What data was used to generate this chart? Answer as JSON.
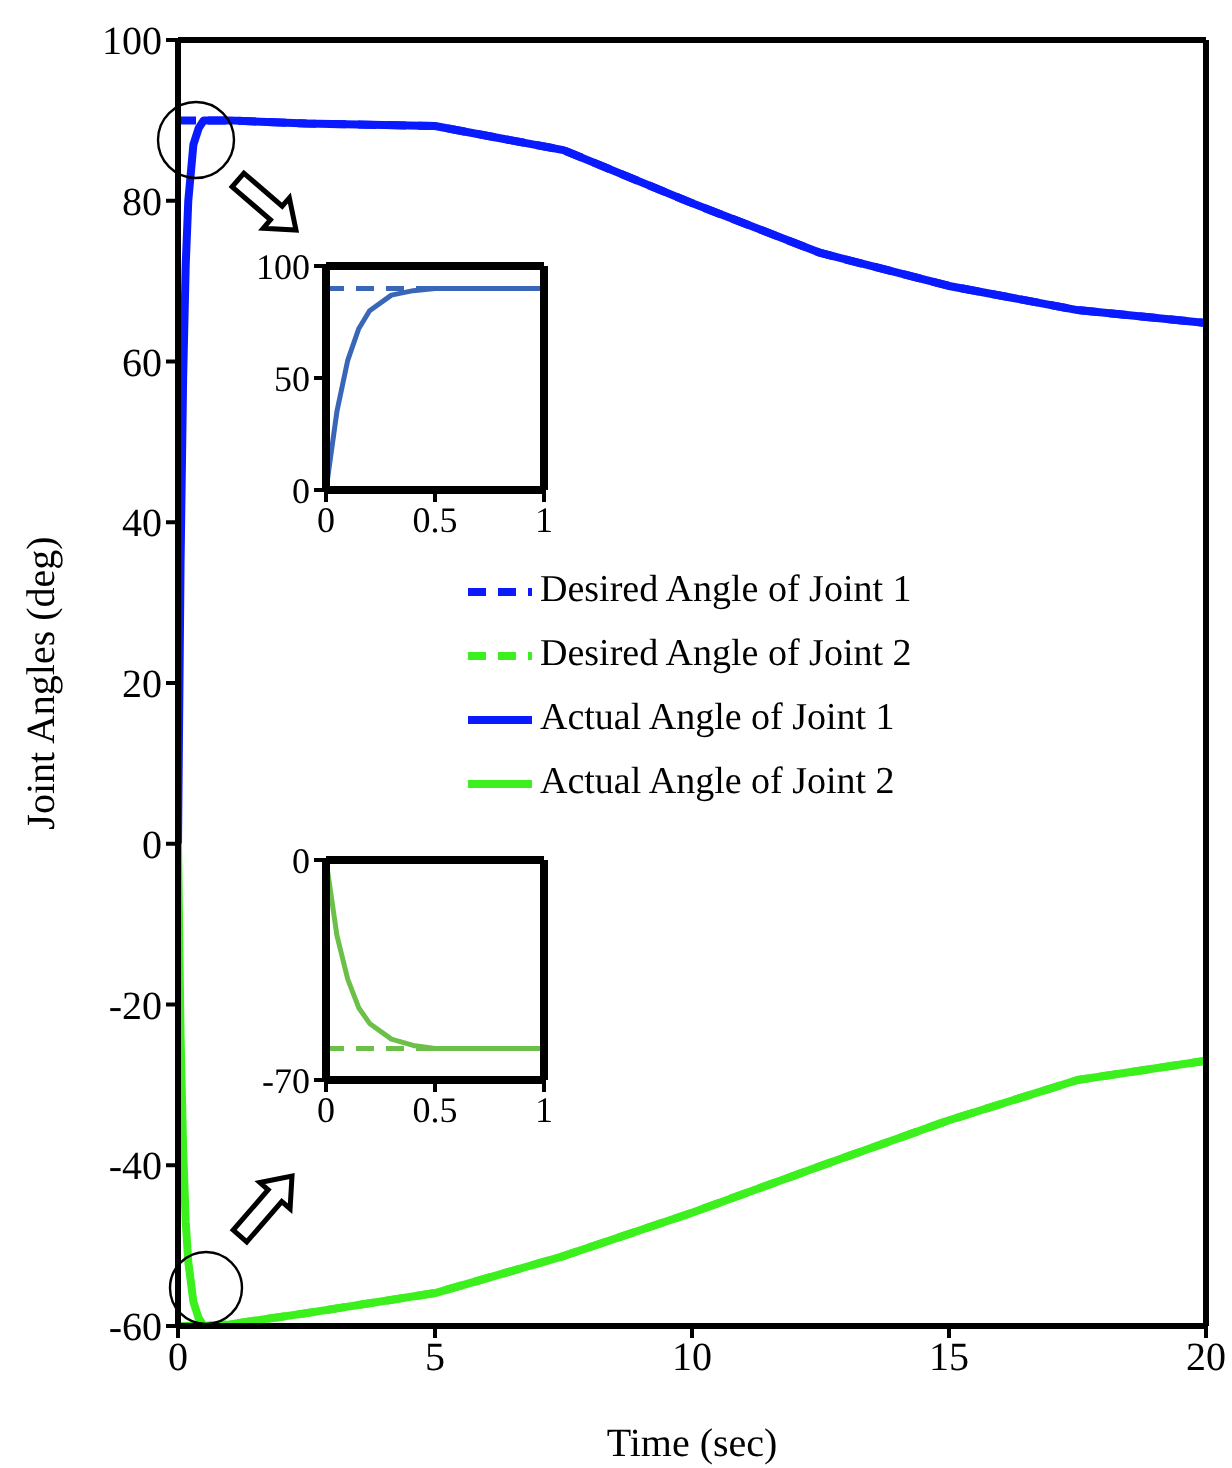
{
  "chart_data": [
    {
      "type": "line",
      "xlabel": "Time (sec)",
      "ylabel": "Joint Angles (deg)",
      "xlim": [
        0,
        20
      ],
      "xticks": [
        0,
        5,
        10,
        15,
        20
      ],
      "ylim": [
        -60,
        100
      ],
      "yticks": [
        -60,
        -40,
        -20,
        0,
        20,
        40,
        60,
        80,
        100
      ],
      "legend": "right",
      "grid": false,
      "series": [
        {
          "name": "Desired Angle of Joint 1",
          "color": "#0a1aff",
          "line_style": "dashed",
          "x": [
            0,
            0.5,
            1,
            2.5,
            5,
            7.5,
            10,
            12.5,
            15,
            17.5,
            20
          ],
          "values": [
            90,
            90,
            90,
            89.6,
            89.3,
            86.3,
            79.7,
            73.5,
            69.4,
            66.4,
            64.8
          ]
        },
        {
          "name": "Desired Angle of Joint 2",
          "color": "#3cf01e",
          "line_style": "dashed",
          "x": [
            0,
            0.5,
            1,
            2.5,
            5,
            7.5,
            10,
            12.5,
            15,
            17.5,
            20
          ],
          "values": [
            -60,
            -60,
            -59.8,
            -58.4,
            -55.9,
            -51.3,
            -45.9,
            -40.1,
            -34.4,
            -29.4,
            -27
          ]
        },
        {
          "name": "Actual Angle of Joint 1",
          "color": "#0a1aff",
          "line_style": "solid",
          "x": [
            0,
            0.05,
            0.1,
            0.15,
            0.2,
            0.3,
            0.4,
            0.5,
            1,
            2.5,
            5,
            7.5,
            10,
            12.5,
            15,
            17.5,
            20
          ],
          "values": [
            0,
            35,
            58,
            72,
            80,
            87,
            89,
            90,
            90,
            89.6,
            89.3,
            86.3,
            79.7,
            73.5,
            69.4,
            66.4,
            64.8
          ]
        },
        {
          "name": "Actual Angle of Joint 2",
          "color": "#3cf01e",
          "line_style": "solid",
          "x": [
            0,
            0.05,
            0.1,
            0.15,
            0.2,
            0.3,
            0.4,
            0.5,
            1,
            2.5,
            5,
            7.5,
            10,
            12.5,
            15,
            17.5,
            20
          ],
          "values": [
            0,
            -24,
            -38,
            -47,
            -52,
            -57,
            -59,
            -60,
            -59.8,
            -58.4,
            -55.9,
            -51.3,
            -45.9,
            -40.1,
            -34.4,
            -29.4,
            -27
          ]
        }
      ]
    },
    {
      "type": "line",
      "xlim": [
        0,
        1
      ],
      "xticks": [
        0,
        0.5,
        1
      ],
      "ylim": [
        0,
        100
      ],
      "yticks": [
        0,
        50,
        100
      ],
      "series": [
        {
          "color": "#3a66b8",
          "line_style": "dashed",
          "x": [
            0,
            1
          ],
          "values": [
            90,
            90
          ]
        },
        {
          "color": "#3a66b8",
          "line_style": "solid",
          "x": [
            0,
            0.05,
            0.1,
            0.15,
            0.2,
            0.3,
            0.4,
            0.5,
            0.75,
            1
          ],
          "values": [
            0,
            35,
            58,
            72,
            80,
            87,
            89,
            90,
            90,
            90
          ]
        }
      ]
    },
    {
      "type": "line",
      "xlim": [
        0,
        1
      ],
      "xticks": [
        0,
        0.5,
        1
      ],
      "ylim": [
        -70,
        0
      ],
      "yticks": [
        -70,
        0
      ],
      "series": [
        {
          "color": "#6cc04a",
          "line_style": "dashed",
          "x": [
            0,
            1
          ],
          "values": [
            -60,
            -60
          ]
        },
        {
          "color": "#6cc04a",
          "line_style": "solid",
          "x": [
            0,
            0.05,
            0.1,
            0.15,
            0.2,
            0.3,
            0.4,
            0.5,
            0.75,
            1
          ],
          "values": [
            0,
            -24,
            -38,
            -47,
            -52,
            -57,
            -59,
            -60,
            -60,
            -60
          ]
        }
      ]
    }
  ]
}
